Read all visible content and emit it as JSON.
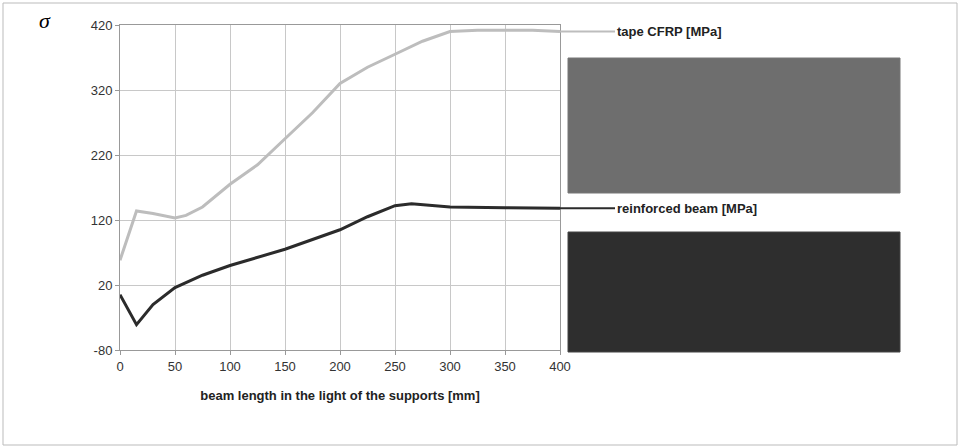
{
  "chart_data": {
    "type": "line",
    "x_label": "beam length in the light of the supports [mm]",
    "y_label": "σ",
    "xlim": [
      0,
      400
    ],
    "xticks": [
      0,
      50,
      100,
      150,
      200,
      250,
      300,
      350,
      400
    ],
    "ylim": [
      -80,
      420
    ],
    "yticks": [
      -80,
      20,
      120,
      220,
      320,
      420
    ],
    "grid": true,
    "series": [
      {
        "name": "tape CFRP [MPa]",
        "color": "#bdbdbd",
        "x": [
          0,
          15,
          30,
          50,
          60,
          75,
          100,
          125,
          150,
          175,
          200,
          225,
          250,
          275,
          300,
          325,
          350,
          375,
          400
        ],
        "values": [
          58,
          134,
          130,
          123,
          127,
          140,
          175,
          205,
          245,
          285,
          330,
          355,
          375,
          395,
          410,
          412,
          412,
          412,
          410
        ]
      },
      {
        "name": "reinforced beam [MPa]",
        "color": "#2b2b2b",
        "x": [
          0,
          15,
          30,
          50,
          75,
          100,
          150,
          200,
          225,
          250,
          265,
          300,
          350,
          400
        ],
        "values": [
          5,
          -41,
          -10,
          16,
          35,
          50,
          75,
          105,
          125,
          142,
          145,
          140,
          139,
          138
        ]
      }
    ]
  }
}
